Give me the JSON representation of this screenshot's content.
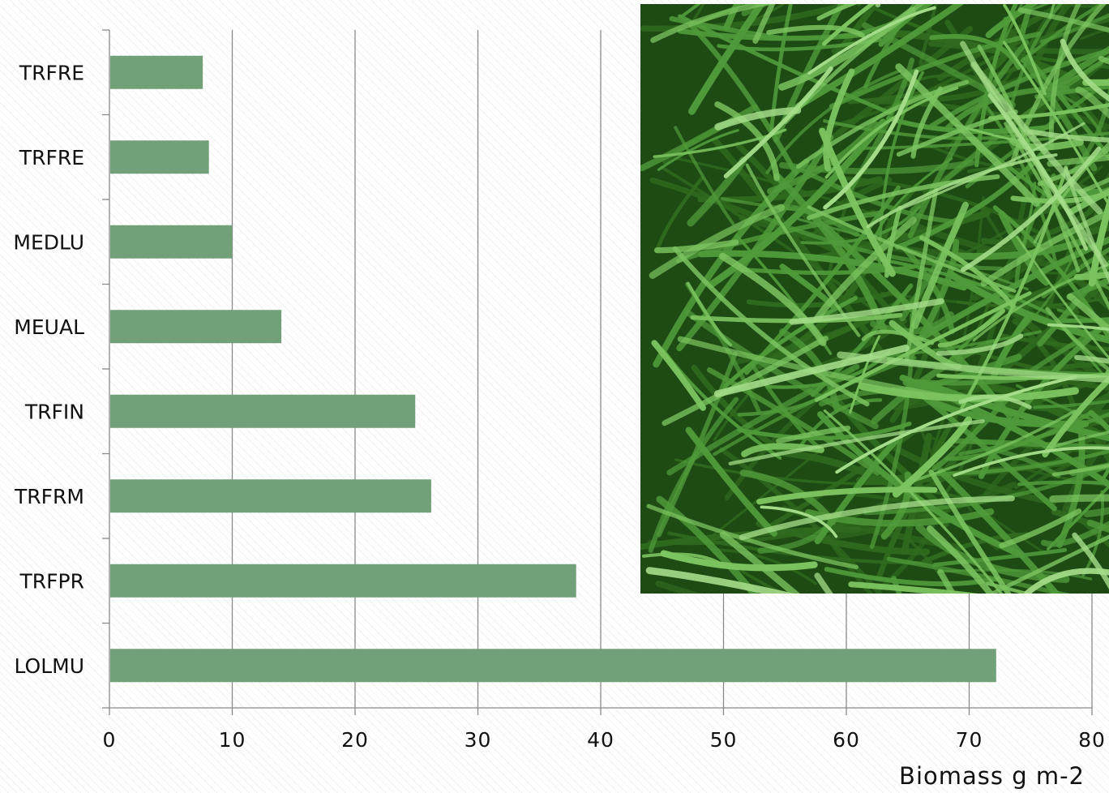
{
  "chart_data": {
    "type": "bar",
    "orientation": "horizontal",
    "categories": [
      "TRFRE",
      "TRFRE",
      "MEDLU",
      "MEUAL",
      "TRFIN",
      "TRFRM",
      "TRFPR",
      "LOLMU"
    ],
    "values": [
      7.6,
      8.1,
      10.0,
      14.0,
      24.9,
      26.2,
      38.0,
      72.2
    ],
    "xlabel": "Biomass g m-2",
    "ylabel": "",
    "xlim": [
      0,
      80
    ],
    "xticks": [
      0,
      10,
      20,
      30,
      40,
      50,
      60,
      70,
      80
    ],
    "grid": true,
    "legend": "none",
    "bar_color": "#72a079",
    "grid_color": "#8a8a8a",
    "axis_color": "#8a8a8a"
  },
  "photo": {
    "subject": "grass",
    "palette": [
      "#2f6a1e",
      "#4f9a3a",
      "#7cc460",
      "#a5dd8a",
      "#1e4a14"
    ]
  }
}
